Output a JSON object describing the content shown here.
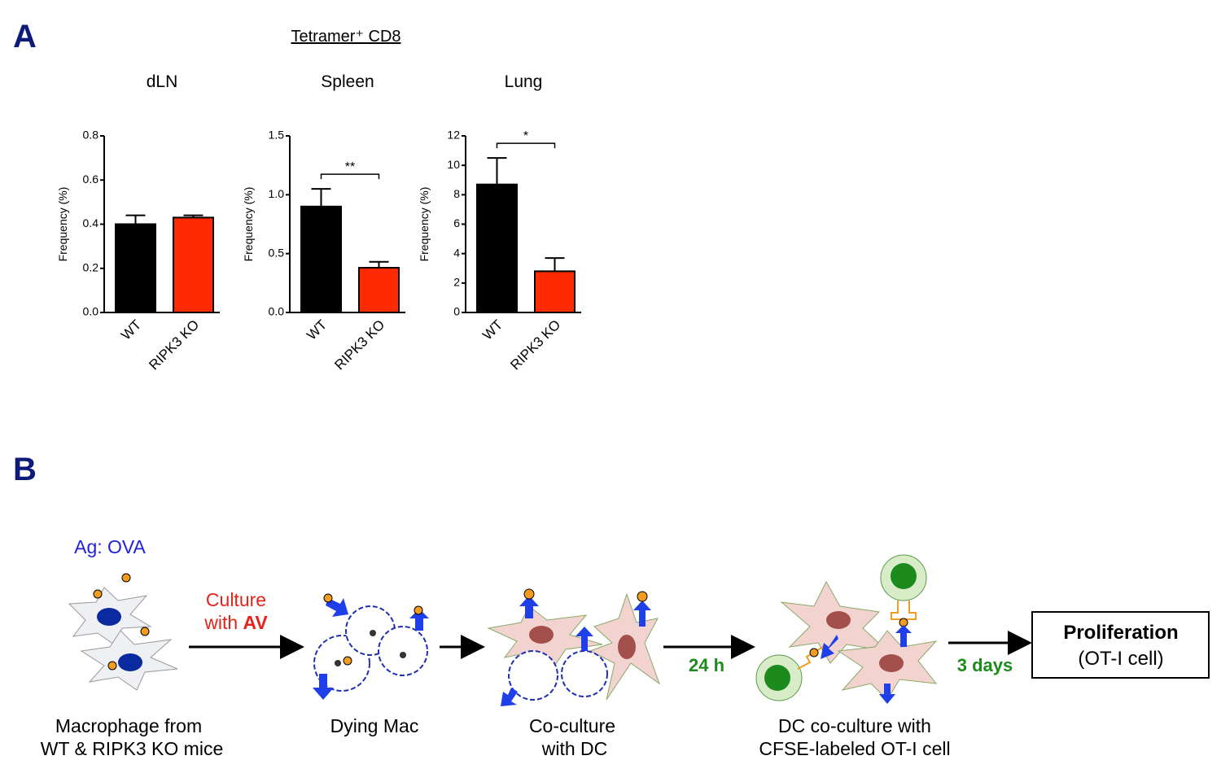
{
  "panels": {
    "a": "A",
    "b": "B"
  },
  "panel_a_title": "Tetramer⁺ CD8",
  "chart_data": [
    {
      "type": "bar",
      "title": "dLN",
      "y_label": "Frequency (%)",
      "categories": [
        "WT",
        "RIPK3 KO"
      ],
      "values": [
        0.4,
        0.43
      ],
      "errors": [
        0.04,
        0.01
      ],
      "colors": [
        "#000000",
        "#ff2a00"
      ],
      "ylim": [
        0,
        0.8
      ],
      "yticks": [
        {
          "value": 0,
          "label": "0.0"
        },
        0.2,
        0.4,
        0.6,
        0.8
      ]
    },
    {
      "type": "bar",
      "title": "Spleen",
      "y_label": "Frequency (%)",
      "categories": [
        "WT",
        "RIPK3 KO"
      ],
      "values": [
        0.9,
        0.38
      ],
      "errors": [
        0.15,
        0.05
      ],
      "colors": [
        "#000000",
        "#ff2a00"
      ],
      "ylim": [
        0,
        1.5
      ],
      "yticks": [
        {
          "value": 0,
          "label": "0.0"
        },
        0.5,
        {
          "value": 1,
          "label": "1.0"
        },
        1.5
      ],
      "annotation": "**"
    },
    {
      "type": "bar",
      "title": "Lung",
      "y_label": "Frequency (%)",
      "categories": [
        "WT",
        "RIPK3 KO"
      ],
      "values": [
        8.7,
        2.8
      ],
      "errors": [
        1.8,
        0.9
      ],
      "colors": [
        "#000000",
        "#ff2a00"
      ],
      "ylim": [
        0,
        12
      ],
      "yticks": [
        0,
        2,
        4,
        6,
        8,
        10,
        12
      ],
      "annotation": "*"
    }
  ],
  "diagram": {
    "antigen": "Ag: OVA",
    "culture": "Culture",
    "culture_with": "with",
    "culture_av": "AV",
    "time_1": "24 h",
    "time_2": "3 days",
    "result_title": "Proliferation",
    "result_subtitle": "(OT-I cell)",
    "captions": [
      [
        "Macrophage from",
        "WT & RIPK3 KO mice"
      ],
      [
        "Dying Mac"
      ],
      [
        "Co-culture",
        "with DC"
      ],
      [
        "DC co-culture with",
        "CFSE-labeled OT-I cell"
      ]
    ]
  }
}
